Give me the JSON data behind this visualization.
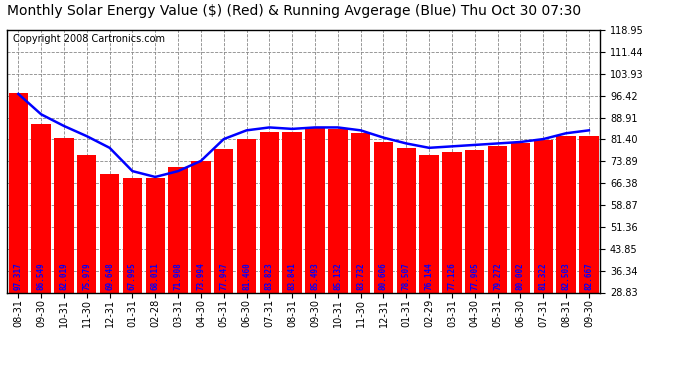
{
  "title": "Monthly Solar Energy Value ($) (Red) & Running Avgerage (Blue) Thu Oct 30 07:30",
  "copyright": "Copyright 2008 Cartronics.com",
  "bar_color": "#FF0000",
  "line_color": "#0000FF",
  "background_color": "#FFFFFF",
  "grid_color": "#888888",
  "categories": [
    "08-31",
    "09-30",
    "10-31",
    "11-30",
    "12-31",
    "01-31",
    "02-28",
    "03-31",
    "04-30",
    "05-31",
    "06-30",
    "07-31",
    "08-31",
    "09-30",
    "10-31",
    "11-30",
    "12-31",
    "01-31",
    "02-29",
    "03-31",
    "04-30",
    "05-31",
    "06-30",
    "07-31",
    "08-31",
    "09-30"
  ],
  "values": [
    97.317,
    86.549,
    82.019,
    75.979,
    69.648,
    67.995,
    68.011,
    71.908,
    73.994,
    77.947,
    81.46,
    83.823,
    83.841,
    85.493,
    85.132,
    83.732,
    80.606,
    78.507,
    76.144,
    77.126,
    77.905,
    79.272,
    80.002,
    81.322,
    82.503,
    82.667
  ],
  "running_avg": [
    97.0,
    90.0,
    86.0,
    82.5,
    78.5,
    70.5,
    68.5,
    70.5,
    74.0,
    81.5,
    84.5,
    85.5,
    85.0,
    85.5,
    85.5,
    84.5,
    82.0,
    80.0,
    78.5,
    79.0,
    79.5,
    80.0,
    80.5,
    81.5,
    83.5,
    84.5
  ],
  "ymin": 28.83,
  "ymax": 118.95,
  "yticks": [
    28.83,
    36.34,
    43.85,
    51.36,
    58.87,
    66.38,
    73.89,
    81.4,
    88.91,
    96.42,
    103.93,
    111.44,
    118.95
  ],
  "title_fontsize": 10,
  "copyright_fontsize": 7,
  "tick_fontsize": 7,
  "value_fontsize": 5.5
}
